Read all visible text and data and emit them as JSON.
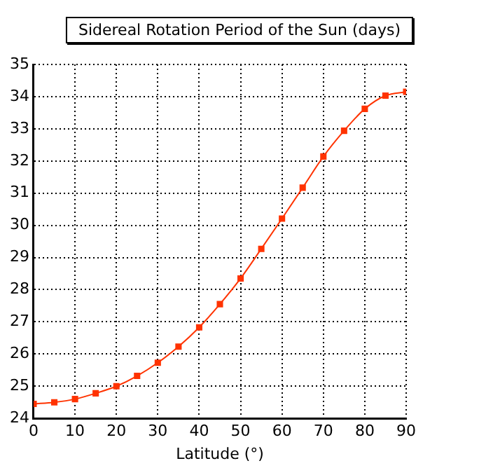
{
  "chart_data": {
    "type": "line",
    "title": "Sidereal Rotation Period of the Sun (days)",
    "xlabel": "Latitude (°)",
    "x": [
      0,
      5,
      10,
      15,
      20,
      25,
      30,
      35,
      40,
      45,
      50,
      55,
      60,
      65,
      70,
      75,
      80,
      85,
      90
    ],
    "series": [
      {
        "color": "#ff3300",
        "values": [
          24.45,
          24.5,
          24.6,
          24.78,
          25.0,
          25.32,
          25.73,
          26.23,
          26.83,
          27.55,
          28.35,
          29.27,
          30.21,
          31.17,
          32.14,
          32.94,
          33.62,
          34.03,
          34.15
        ]
      }
    ],
    "xlim": [
      0,
      90
    ],
    "xticks": [
      0,
      10,
      20,
      30,
      40,
      50,
      60,
      70,
      80,
      90
    ],
    "ylim": [
      24,
      35
    ],
    "yticks": [
      24,
      25,
      26,
      27,
      28,
      29,
      30,
      31,
      32,
      33,
      34,
      35
    ],
    "grid": true,
    "marker": "square",
    "line_style": "solid",
    "legend": false
  }
}
